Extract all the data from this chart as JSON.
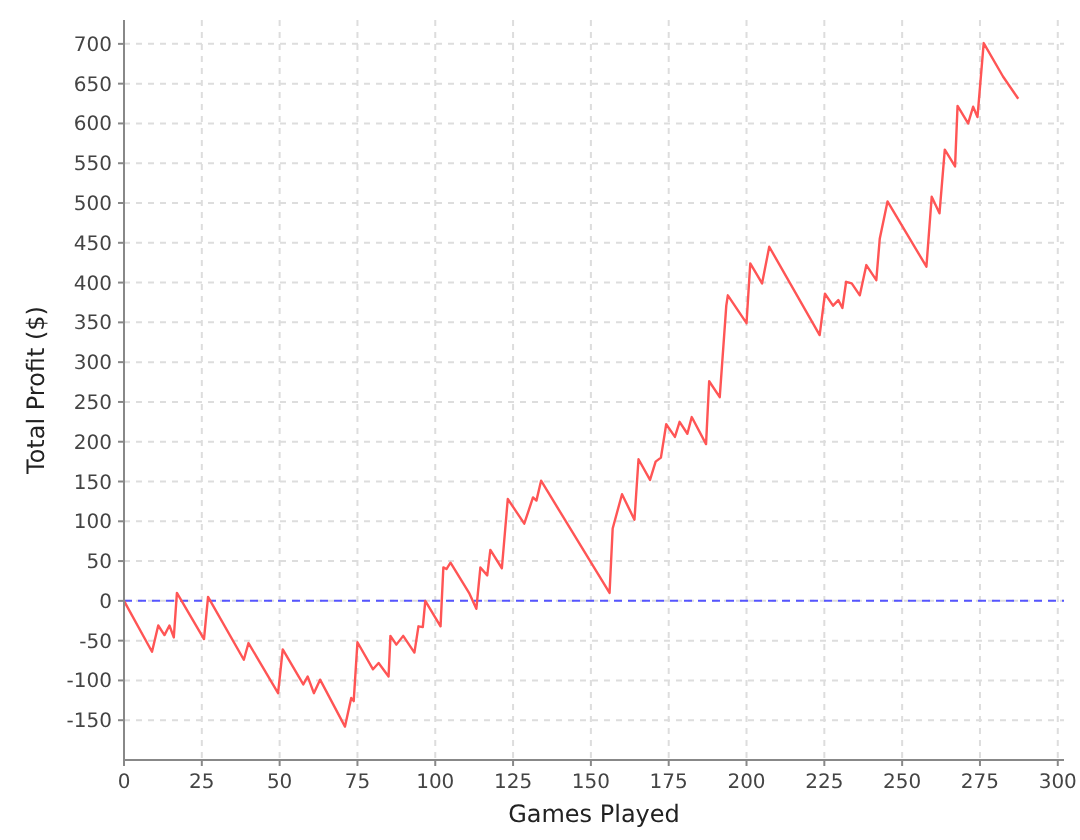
{
  "chart_data": {
    "type": "line",
    "xlabel": "Games Played",
    "ylabel": "Total Profit ($)",
    "xlim": [
      0,
      302
    ],
    "ylim": [
      -200,
      730
    ],
    "xticks": [
      0,
      25,
      50,
      75,
      100,
      125,
      150,
      175,
      200,
      225,
      250,
      275,
      300
    ],
    "yticks": [
      -150,
      -100,
      -50,
      0,
      50,
      100,
      150,
      200,
      250,
      300,
      350,
      400,
      450,
      500,
      550,
      600,
      650,
      700
    ],
    "grid": true,
    "marker": "none",
    "line_style": "solid",
    "ref_lines": [
      {
        "axis": "y",
        "value": 0,
        "color": "#5555ff",
        "line_style": "dashed"
      }
    ],
    "series": [
      {
        "color": "#ff5555",
        "x": [
          0,
          9,
          11,
          13,
          14.6,
          16,
          17,
          25.7,
          27,
          38.5,
          40,
          49.5,
          51,
          57.6,
          59,
          61,
          63,
          71,
          73,
          73.8,
          75,
          80,
          81.8,
          85,
          85.6,
          87.5,
          89.7,
          93.3,
          94.6,
          96,
          96.8,
          101.7,
          102.6,
          103.6,
          104.9,
          111,
          113.2,
          114.5,
          116.7,
          117.7,
          121.4,
          123.3,
          128.6,
          131.4,
          132.5,
          134,
          156,
          157,
          160,
          164,
          165.3,
          169,
          170.8,
          172.5,
          174.2,
          177,
          178.5,
          181,
          182.4,
          187,
          188,
          191.4,
          193.5,
          194,
          200,
          201.2,
          205,
          207.3,
          223.5,
          225.2,
          227.8,
          229.5,
          230.8,
          232,
          233.8,
          236.4,
          238.5,
          241.7,
          242.8,
          245.3,
          257.8,
          259.5,
          262,
          263.7,
          267,
          267.8,
          271.2,
          272.8,
          274.2,
          276.2,
          282.4,
          287.3
        ],
        "values": [
          0,
          -64,
          -31,
          -43,
          -31,
          -46,
          10,
          -48,
          5,
          -74,
          -53,
          -116,
          -61,
          -105,
          -95,
          -116,
          -99,
          -158,
          -122,
          -126,
          -52,
          -86,
          -78,
          -95,
          -44,
          -55,
          -44,
          -65,
          -32,
          -33,
          0,
          -32,
          42,
          40,
          48,
          9,
          -10,
          42,
          32,
          64,
          41,
          128,
          97,
          130,
          126,
          151,
          10,
          91,
          134,
          102,
          178,
          152,
          175,
          180,
          222,
          206,
          225,
          210,
          231,
          197,
          276,
          256,
          371,
          384,
          349,
          424,
          399,
          445,
          334,
          386,
          371,
          378,
          368,
          401,
          399,
          384,
          422,
          403,
          455,
          502,
          420,
          508,
          487,
          567,
          546,
          622,
          600,
          621,
          608,
          701,
          659,
          631
        ]
      }
    ]
  }
}
